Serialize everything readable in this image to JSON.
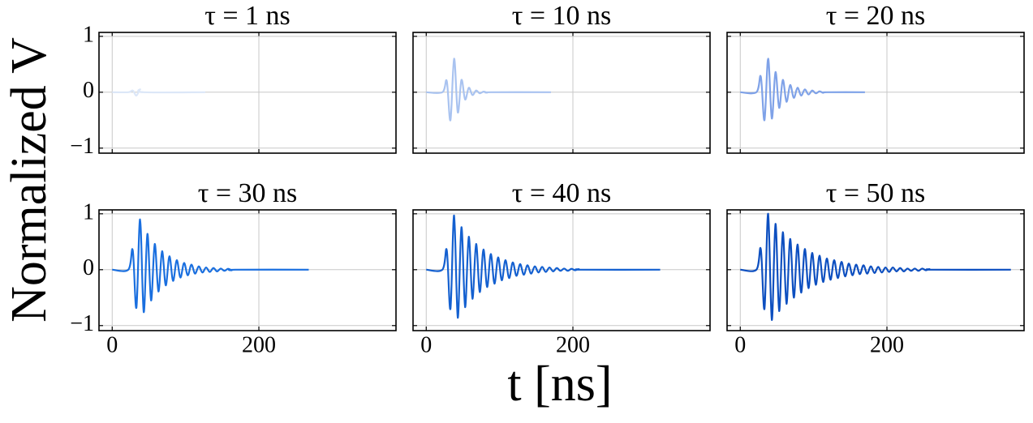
{
  "ylabel": "Normalized V",
  "xlabel": "t [ns]",
  "chart_data": [
    {
      "type": "line",
      "title": "τ = 1 ns",
      "color": "#dce7f8",
      "x": [
        0,
        22,
        28,
        33,
        38,
        43,
        127
      ],
      "values": [
        0,
        0,
        0.03,
        -0.06,
        0.05,
        0,
        0
      ],
      "xlim": [
        -18,
        387
      ],
      "ylim": [
        -1.09,
        1.07
      ],
      "xticks": [
        0,
        200
      ],
      "yticks": [
        {
          "value": -1,
          "label": "−1"
        },
        0,
        1
      ],
      "grid": true
    },
    {
      "type": "line",
      "title": "τ = 10 ns",
      "color": "#a9c3f0",
      "x": [
        0,
        22,
        28,
        33,
        38,
        43,
        48,
        53,
        58,
        63,
        68,
        73,
        78,
        83,
        88,
        170
      ],
      "values": [
        0,
        0,
        0.2,
        -0.5,
        0.6,
        -0.36,
        0.22,
        -0.13,
        0.08,
        -0.05,
        0.03,
        -0.02,
        0.01,
        -0.007,
        0,
        0
      ],
      "xlim": [
        -18,
        387
      ],
      "ylim": [
        -1.09,
        1.07
      ],
      "xticks": [
        0,
        200
      ],
      "yticks": [
        {
          "value": -1,
          "label": "−1"
        },
        0,
        1
      ],
      "grid": true
    },
    {
      "type": "line",
      "title": "τ = 20 ns",
      "color": "#7fa2e8",
      "x": [
        0,
        22,
        28,
        33,
        38,
        43,
        48,
        53,
        58,
        63,
        68,
        73,
        78,
        83,
        88,
        93,
        98,
        103,
        108,
        113,
        118,
        170
      ],
      "values": [
        0,
        0,
        0.28,
        -0.5,
        0.6,
        -0.47,
        0.36,
        -0.28,
        0.22,
        -0.17,
        0.13,
        -0.1,
        0.08,
        -0.06,
        0.05,
        -0.04,
        0.03,
        -0.02,
        0.015,
        -0.01,
        0,
        0
      ],
      "xlim": [
        -18,
        387
      ],
      "ylim": [
        -1.09,
        1.07
      ],
      "xticks": [
        0,
        200
      ],
      "yticks": [
        {
          "value": -1,
          "label": "−1"
        },
        0,
        1
      ],
      "grid": true
    },
    {
      "type": "line",
      "title": "τ = 30 ns",
      "color": "#1a6fdf",
      "x": [
        0,
        22,
        28,
        33,
        38,
        43,
        48,
        53,
        58,
        63,
        68,
        73,
        78,
        83,
        88,
        93,
        98,
        103,
        108,
        113,
        118,
        123,
        128,
        133,
        138,
        143,
        148,
        153,
        158,
        163,
        168,
        268
      ],
      "values": [
        0,
        0,
        0.35,
        -0.68,
        0.9,
        -0.76,
        0.64,
        -0.55,
        0.46,
        -0.39,
        0.33,
        -0.28,
        0.24,
        -0.2,
        0.17,
        -0.14,
        0.12,
        -0.1,
        0.09,
        -0.07,
        0.06,
        -0.05,
        0.04,
        -0.04,
        0.03,
        -0.03,
        0.02,
        -0.02,
        0.015,
        -0.01,
        0,
        0
      ],
      "xlim": [
        -18,
        387
      ],
      "ylim": [
        -1.09,
        1.07
      ],
      "xticks": [
        0,
        200
      ],
      "yticks": [
        {
          "value": -1,
          "label": "−1"
        },
        0,
        1
      ],
      "grid": true
    },
    {
      "type": "line",
      "title": "τ = 40 ns",
      "color": "#1460d0",
      "x": [
        0,
        22,
        28,
        33,
        38,
        43,
        48,
        53,
        58,
        63,
        68,
        73,
        78,
        83,
        88,
        93,
        98,
        103,
        108,
        113,
        118,
        123,
        128,
        133,
        138,
        143,
        148,
        153,
        158,
        163,
        168,
        173,
        178,
        183,
        188,
        193,
        198,
        203,
        208,
        213,
        319
      ],
      "values": [
        0,
        0,
        0.35,
        -0.7,
        0.97,
        -0.86,
        0.76,
        -0.67,
        0.59,
        -0.52,
        0.46,
        -0.4,
        0.36,
        -0.31,
        0.28,
        -0.25,
        0.22,
        -0.19,
        0.17,
        -0.15,
        0.13,
        -0.11,
        0.1,
        -0.09,
        0.08,
        -0.07,
        0.06,
        -0.05,
        0.05,
        -0.04,
        0.04,
        -0.03,
        0.03,
        -0.02,
        0.02,
        -0.02,
        0.015,
        -0.01,
        0.01,
        0,
        0
      ],
      "xlim": [
        -18,
        387
      ],
      "ylim": [
        -1.09,
        1.07
      ],
      "xticks": [
        0,
        200
      ],
      "yticks": [
        {
          "value": -1,
          "label": "−1"
        },
        0,
        1
      ],
      "grid": true
    },
    {
      "type": "line",
      "title": "τ = 50 ns",
      "color": "#0d4fc0",
      "x": [
        0,
        22,
        28,
        33,
        38,
        43,
        48,
        53,
        58,
        63,
        68,
        73,
        78,
        83,
        88,
        93,
        98,
        103,
        108,
        113,
        118,
        123,
        128,
        133,
        138,
        143,
        148,
        153,
        158,
        163,
        168,
        173,
        178,
        183,
        188,
        193,
        198,
        203,
        208,
        213,
        218,
        223,
        228,
        233,
        238,
        243,
        248,
        253,
        258,
        263,
        369
      ],
      "values": [
        0,
        0,
        0.37,
        -0.7,
        1,
        -0.9,
        0.82,
        -0.74,
        0.67,
        -0.61,
        0.55,
        -0.5,
        0.45,
        -0.41,
        0.37,
        -0.33,
        0.3,
        -0.27,
        0.25,
        -0.22,
        0.2,
        -0.18,
        0.17,
        -0.15,
        0.14,
        -0.12,
        0.11,
        -0.1,
        0.09,
        -0.08,
        0.08,
        -0.07,
        0.06,
        -0.06,
        0.05,
        -0.05,
        0.04,
        -0.04,
        0.04,
        -0.03,
        0.03,
        -0.03,
        0.02,
        -0.02,
        0.02,
        -0.02,
        0.02,
        -0.01,
        0.01,
        0,
        0
      ],
      "xlim": [
        -18,
        387
      ],
      "ylim": [
        -1.09,
        1.07
      ],
      "xticks": [
        0,
        200
      ],
      "yticks": [
        {
          "value": -1,
          "label": "−1"
        },
        0,
        1
      ],
      "grid": true
    }
  ]
}
